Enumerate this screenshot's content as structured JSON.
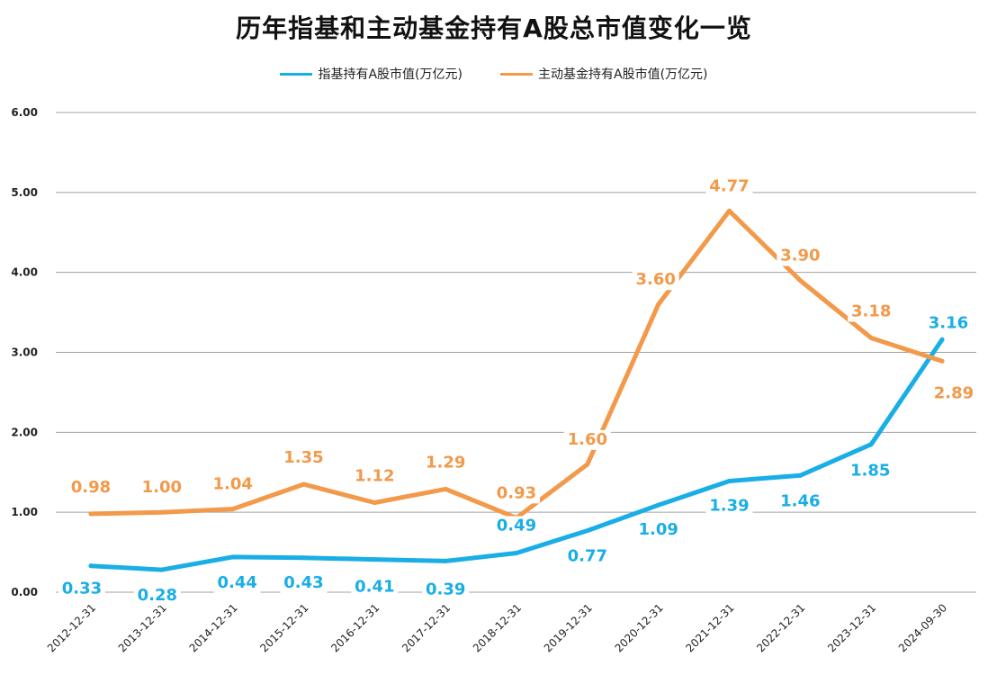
{
  "chart_data": {
    "type": "line",
    "title": "历年指基和主动基金持有A股总市值变化一览",
    "categories": [
      "2012-12-31",
      "2013-12-31",
      "2014-12-31",
      "2015-12-31",
      "2016-12-31",
      "2017-12-31",
      "2018-12-31",
      "2019-12-31",
      "2020-12-31",
      "2021-12-31",
      "2022-12-31",
      "2023-12-31",
      "2024-09-30"
    ],
    "series": [
      {
        "name": "指基持有A股市值(万亿元)",
        "color": "#1aaee6",
        "values": [
          0.33,
          0.28,
          0.44,
          0.43,
          0.41,
          0.39,
          0.49,
          0.77,
          1.09,
          1.39,
          1.46,
          1.85,
          3.16
        ],
        "labels": [
          "0.33",
          "0.28",
          "0.44",
          "0.43",
          "0.41",
          "0.39",
          "0.49",
          "0.77",
          "1.09",
          "1.39",
          "1.46",
          "1.85",
          "3.16"
        ]
      },
      {
        "name": "主动基金持有A股市值(万亿元)",
        "color": "#f2994a",
        "values": [
          0.98,
          1.0,
          1.04,
          1.35,
          1.12,
          1.29,
          0.93,
          1.6,
          3.6,
          4.77,
          3.9,
          3.18,
          2.89
        ],
        "labels": [
          "0.98",
          "1.00",
          "1.04",
          "1.35",
          "1.12",
          "1.29",
          "0.93",
          "1.60",
          "3.60",
          "4.77",
          "3.90",
          "3.18",
          "2.89"
        ]
      }
    ],
    "yticks": [
      "0.00",
      "1.00",
      "2.00",
      "3.00",
      "4.00",
      "5.00",
      "6.00"
    ],
    "ylim": [
      0,
      6
    ],
    "grid": true,
    "legend": "top-center"
  }
}
